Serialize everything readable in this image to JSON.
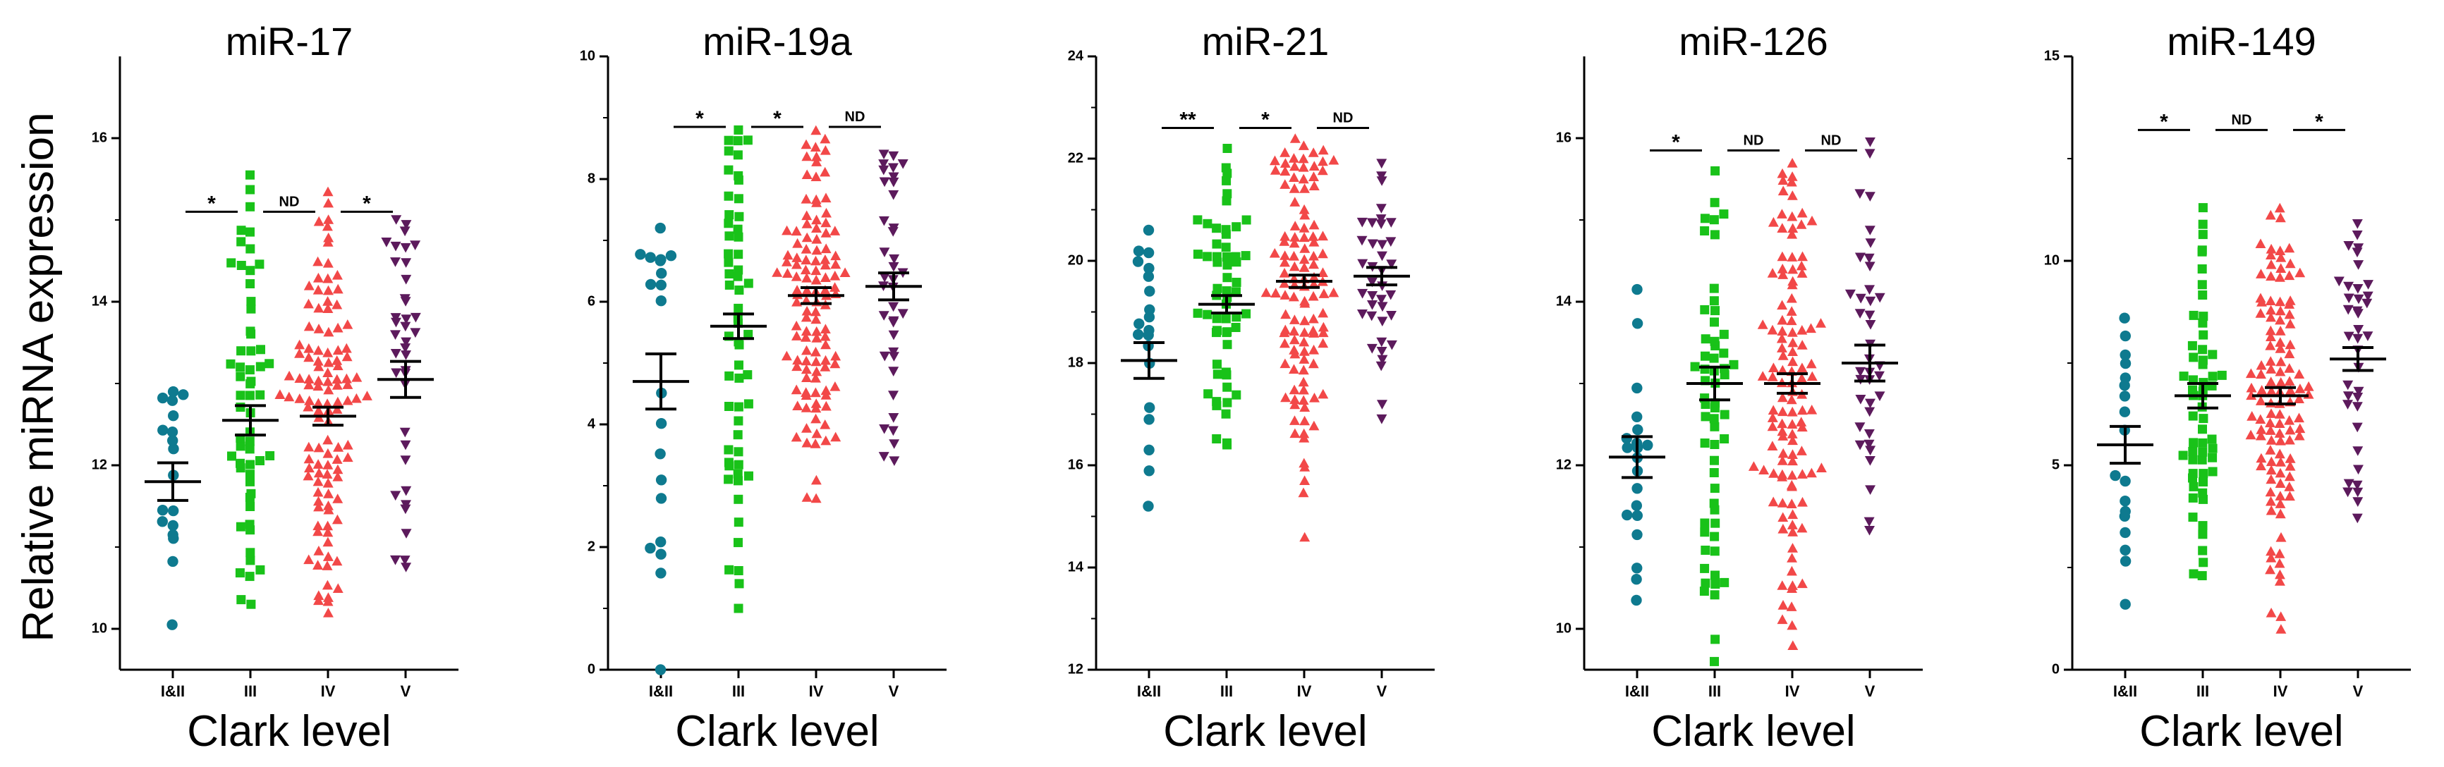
{
  "figure": {
    "ylabel": "Relative miRNA expression",
    "xlabel": "Clark level",
    "categories": [
      "I&II",
      "III",
      "IV",
      "V"
    ],
    "colors": {
      "I&II": "#0e7a8f",
      "III": "#19c219",
      "IV": "#f24848",
      "V": "#5c1a5c"
    },
    "markers": {
      "I&II": "circle",
      "III": "square",
      "IV": "triangle-up",
      "V": "triangle-down"
    }
  },
  "chart_data": [
    {
      "type": "scatter",
      "title": "miR-17",
      "xlabel": "Clark level",
      "ylabel": "Relative miRNA expression",
      "categories": [
        "I&II",
        "III",
        "IV",
        "V"
      ],
      "ylim": [
        9.5,
        17
      ],
      "yticks": [
        10,
        12,
        14,
        16
      ],
      "show_ytick_labels": true,
      "groups": [
        {
          "name": "I&II",
          "n": 18,
          "mean": 11.8,
          "sem": 0.23,
          "min": 10.05,
          "max": 12.9
        },
        {
          "name": "III",
          "n": 58,
          "mean": 12.55,
          "sem": 0.18,
          "min": 10.3,
          "max": 15.55
        },
        {
          "name": "IV",
          "n": 115,
          "mean": 12.6,
          "sem": 0.11,
          "min": 10.2,
          "max": 15.35
        },
        {
          "name": "V",
          "n": 38,
          "mean": 13.05,
          "sem": 0.22,
          "min": 10.75,
          "max": 15.0
        }
      ],
      "significance": [
        {
          "from": 0,
          "to": 1,
          "label": "*"
        },
        {
          "from": 1,
          "to": 2,
          "label": "ND"
        },
        {
          "from": 2,
          "to": 3,
          "label": "*"
        }
      ],
      "sig_y": 15.1
    },
    {
      "type": "scatter",
      "title": "miR-19a",
      "xlabel": "Clark level",
      "categories": [
        "I&II",
        "III",
        "IV",
        "V"
      ],
      "ylim": [
        0,
        10
      ],
      "yticks": [
        0,
        2,
        4,
        6,
        8,
        10
      ],
      "show_ytick_labels": true,
      "groups": [
        {
          "name": "I&II",
          "n": 20,
          "mean": 4.7,
          "sem": 0.45,
          "min": 0.0,
          "max": 7.2
        },
        {
          "name": "III",
          "n": 58,
          "mean": 5.6,
          "sem": 0.2,
          "min": 1.0,
          "max": 8.8
        },
        {
          "name": "IV",
          "n": 115,
          "mean": 6.1,
          "sem": 0.13,
          "min": 2.8,
          "max": 8.8
        },
        {
          "name": "V",
          "n": 38,
          "mean": 6.25,
          "sem": 0.22,
          "min": 3.4,
          "max": 8.4
        }
      ],
      "significance": [
        {
          "from": 0,
          "to": 1,
          "label": "*"
        },
        {
          "from": 1,
          "to": 2,
          "label": "*"
        },
        {
          "from": 2,
          "to": 3,
          "label": "ND"
        }
      ],
      "sig_y": 8.85
    },
    {
      "type": "scatter",
      "title": "miR-21",
      "xlabel": "Clark level",
      "categories": [
        "I&II",
        "III",
        "IV",
        "V"
      ],
      "ylim": [
        12,
        24
      ],
      "yticks": [
        12,
        14,
        16,
        18,
        20,
        22,
        24
      ],
      "show_ytick_labels": true,
      "groups": [
        {
          "name": "I&II",
          "n": 20,
          "mean": 18.05,
          "sem": 0.35,
          "min": 15.2,
          "max": 20.6
        },
        {
          "name": "III",
          "n": 58,
          "mean": 19.15,
          "sem": 0.17,
          "min": 16.4,
          "max": 22.2
        },
        {
          "name": "IV",
          "n": 115,
          "mean": 19.6,
          "sem": 0.12,
          "min": 14.6,
          "max": 22.4
        },
        {
          "name": "V",
          "n": 38,
          "mean": 19.7,
          "sem": 0.17,
          "min": 16.9,
          "max": 21.9
        }
      ],
      "significance": [
        {
          "from": 0,
          "to": 1,
          "label": "**"
        },
        {
          "from": 1,
          "to": 2,
          "label": "*"
        },
        {
          "from": 2,
          "to": 3,
          "label": "ND"
        }
      ],
      "sig_y": 22.6
    },
    {
      "type": "scatter",
      "title": "miR-126",
      "xlabel": "Clark level",
      "categories": [
        "I&II",
        "III",
        "IV",
        "V"
      ],
      "ylim": [
        9.5,
        17
      ],
      "yticks": [
        10,
        12,
        14,
        16
      ],
      "show_ytick_labels": true,
      "groups": [
        {
          "name": "I&II",
          "n": 20,
          "mean": 12.1,
          "sem": 0.25,
          "min": 10.35,
          "max": 14.15
        },
        {
          "name": "III",
          "n": 58,
          "mean": 13.0,
          "sem": 0.2,
          "min": 9.6,
          "max": 15.6
        },
        {
          "name": "IV",
          "n": 115,
          "mean": 13.0,
          "sem": 0.12,
          "min": 9.8,
          "max": 15.7
        },
        {
          "name": "V",
          "n": 38,
          "mean": 13.25,
          "sem": 0.22,
          "min": 11.2,
          "max": 15.95
        }
      ],
      "significance": [
        {
          "from": 0,
          "to": 1,
          "label": "*"
        },
        {
          "from": 1,
          "to": 2,
          "label": "ND"
        },
        {
          "from": 2,
          "to": 3,
          "label": "ND"
        }
      ],
      "sig_y": 15.85
    },
    {
      "type": "scatter",
      "title": "miR-149",
      "xlabel": "Clark level",
      "categories": [
        "I&II",
        "III",
        "IV",
        "V"
      ],
      "ylim": [
        0,
        15
      ],
      "yticks": [
        0,
        5,
        10,
        15
      ],
      "show_ytick_labels": true,
      "groups": [
        {
          "name": "I&II",
          "n": 18,
          "mean": 5.5,
          "sem": 0.45,
          "min": 1.6,
          "max": 8.6
        },
        {
          "name": "III",
          "n": 58,
          "mean": 6.7,
          "sem": 0.3,
          "min": 2.3,
          "max": 11.3
        },
        {
          "name": "IV",
          "n": 115,
          "mean": 6.7,
          "sem": 0.2,
          "min": 1.0,
          "max": 11.3
        },
        {
          "name": "V",
          "n": 38,
          "mean": 7.6,
          "sem": 0.28,
          "min": 3.7,
          "max": 10.9
        }
      ],
      "significance": [
        {
          "from": 0,
          "to": 1,
          "label": "*"
        },
        {
          "from": 1,
          "to": 2,
          "label": "ND"
        },
        {
          "from": 2,
          "to": 3,
          "label": "*"
        }
      ],
      "sig_y": 13.2
    }
  ]
}
